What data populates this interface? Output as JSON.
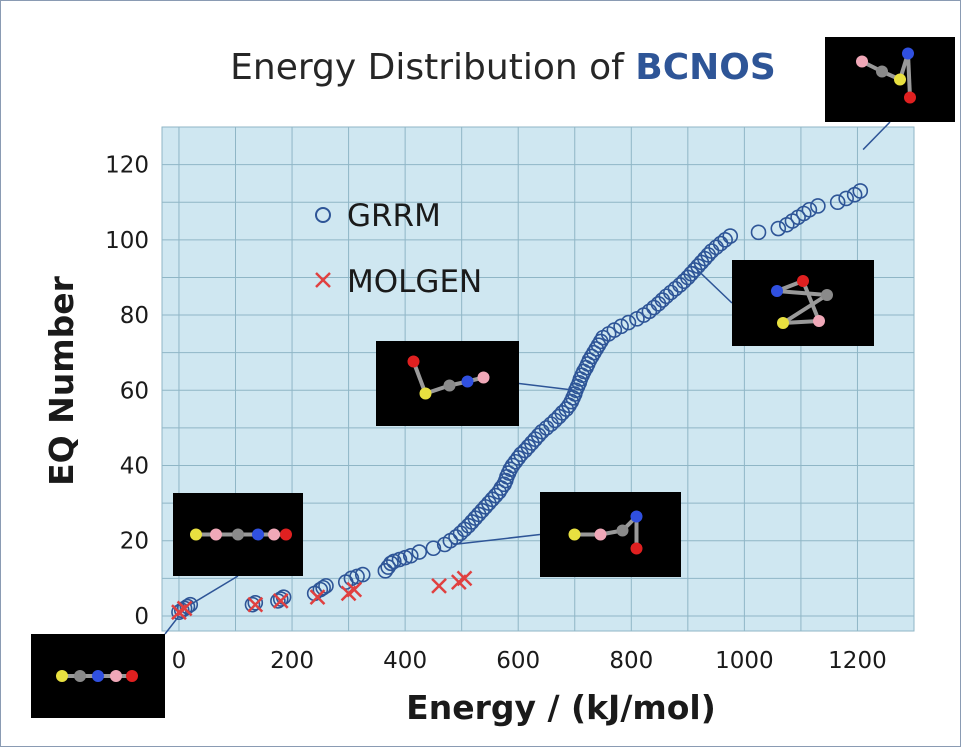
{
  "chart_data": {
    "type": "scatter",
    "title": "Energy Distribution of",
    "title_emphasis": "BCNOS",
    "xlabel": "Energy / (kJ/mol)",
    "ylabel": "EQ Number",
    "xlim": [
      -30,
      1300
    ],
    "ylim": [
      -4,
      130
    ],
    "x_ticks": [
      0,
      200,
      400,
      600,
      800,
      1000,
      1200
    ],
    "y_ticks": [
      0,
      20,
      40,
      60,
      80,
      100,
      120
    ],
    "x_tick_labels": [
      "0",
      "200",
      "400",
      "600",
      "800",
      "1000",
      "1200"
    ],
    "y_tick_labels": [
      "0",
      "20",
      "40",
      "60",
      "80",
      "100",
      "120"
    ],
    "grid": true,
    "legend_position": "upper-left",
    "series": [
      {
        "name": "GRRM",
        "marker": "circle",
        "color": "#2e5597",
        "x": [
          0,
          5,
          10,
          15,
          20,
          130,
          135,
          175,
          180,
          185,
          240,
          250,
          255,
          260,
          295,
          305,
          315,
          325,
          365,
          370,
          375,
          380,
          390,
          400,
          410,
          425,
          450,
          470,
          480,
          490,
          498,
          505,
          512,
          518,
          524,
          530,
          536,
          542,
          548,
          554,
          560,
          566,
          570,
          575,
          578,
          580,
          583,
          586,
          590,
          595,
          600,
          605,
          612,
          618,
          624,
          630,
          636,
          642,
          650,
          658,
          665,
          672,
          678,
          685,
          690,
          694,
          697,
          700,
          702,
          705,
          708,
          710,
          713,
          716,
          720,
          723,
          726,
          730,
          734,
          738,
          742,
          746,
          750,
          760,
          770,
          782,
          795,
          810,
          822,
          832,
          840,
          848,
          855,
          862,
          870,
          878,
          886,
          893,
          900,
          906,
          912,
          918,
          924,
          930,
          936,
          942,
          950,
          958,
          966,
          975,
          1025,
          1060,
          1075,
          1085,
          1095,
          1105,
          1115,
          1130,
          1165,
          1180,
          1195,
          1205
        ],
        "y": [
          1,
          1.5,
          2,
          2.5,
          3,
          3,
          3.5,
          4,
          4.5,
          5,
          6,
          7,
          7.5,
          8,
          9,
          10,
          10.5,
          11,
          12,
          13,
          14,
          14.5,
          15,
          15.5,
          16,
          17,
          18,
          19,
          20,
          21,
          22,
          23,
          24,
          25,
          26,
          27,
          28,
          29,
          30,
          31,
          32,
          33,
          34,
          35,
          36,
          37,
          38,
          39,
          40,
          41,
          42,
          43,
          44,
          45,
          46,
          47,
          48,
          49,
          50,
          51,
          52,
          53,
          54,
          55,
          56,
          57,
          58,
          59,
          60,
          61,
          62,
          63,
          64,
          65,
          66,
          67,
          68,
          69,
          70,
          71,
          72,
          73,
          74,
          75,
          76,
          77,
          78,
          79,
          80,
          81,
          82,
          83,
          84,
          85,
          86,
          87,
          88,
          89,
          90,
          91,
          92,
          93,
          94,
          95,
          96,
          97,
          98,
          99,
          100,
          101,
          102,
          103,
          104,
          105,
          106,
          107,
          108,
          109,
          110,
          111,
          112,
          113
        ]
      },
      {
        "name": "MOLGEN",
        "marker": "x",
        "color": "#e04040",
        "x": [
          0,
          10,
          135,
          180,
          245,
          300,
          310,
          460,
          495,
          505
        ],
        "y": [
          1,
          2,
          3,
          4,
          5,
          6,
          7,
          8,
          9,
          10
        ]
      }
    ]
  },
  "colors": {
    "plot_background": "#cfe7f1",
    "grid_line": "#8fb6c6",
    "axis_text": "#1a1a1a",
    "title_text": "#262626",
    "title_emphasis": "#2e5597",
    "callout_line": "#2e5597",
    "inset_background": "#000000"
  },
  "insets": [
    {
      "name": "inset-top-right-molecule",
      "icon": "bent-molecule-icon",
      "x": 1210,
      "y": 124
    },
    {
      "name": "inset-ring-molecule",
      "icon": "ring-molecule-icon",
      "x": 910,
      "y": 93
    },
    {
      "name": "inset-mid-molecule",
      "icon": "bent-chain-molecule-icon",
      "x": 700,
      "y": 60
    },
    {
      "name": "inset-triangle-molecule",
      "icon": "triangle-molecule-icon",
      "x": 485,
      "y": 19
    },
    {
      "name": "inset-left-chain-molecule",
      "icon": "linear-chain-molecule-icon",
      "x": 20,
      "y": 3
    },
    {
      "name": "inset-bottom-chain-molecule",
      "icon": "linear-chain-molecule-icon",
      "x": 0,
      "y": 0
    }
  ]
}
